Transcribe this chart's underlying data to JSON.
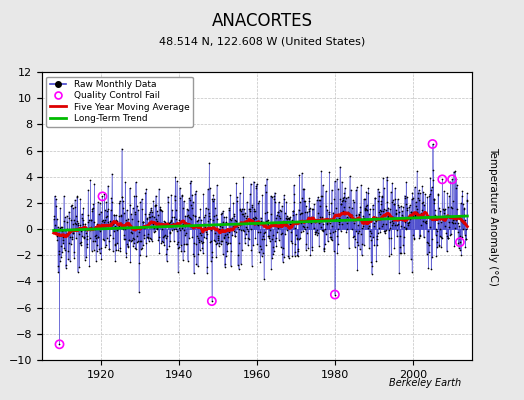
{
  "title": "ANACORTES",
  "subtitle": "48.514 N, 122.608 W (United States)",
  "ylabel": "Temperature Anomaly (°C)",
  "attribution": "Berkeley Earth",
  "xlim": [
    1905,
    2015
  ],
  "ylim": [
    -10,
    12
  ],
  "yticks": [
    -10,
    -8,
    -6,
    -4,
    -2,
    0,
    2,
    4,
    6,
    8,
    10,
    12
  ],
  "xticks": [
    1920,
    1940,
    1960,
    1980,
    2000
  ],
  "start_year": 1908,
  "end_year": 2013,
  "seed": 42,
  "moving_avg_window": 60,
  "colors": {
    "raw_line": "#4444cc",
    "raw_marker": "#000000",
    "qc_fail": "#ff00ff",
    "moving_avg": "#dd0000",
    "long_term": "#00bb00",
    "background": "#e8e8e8",
    "plot_bg": "#ffffff",
    "grid": "#bbbbbb"
  },
  "legend_labels": [
    "Raw Monthly Data",
    "Quality Control Fail",
    "Five Year Moving Average",
    "Long-Term Trend"
  ]
}
